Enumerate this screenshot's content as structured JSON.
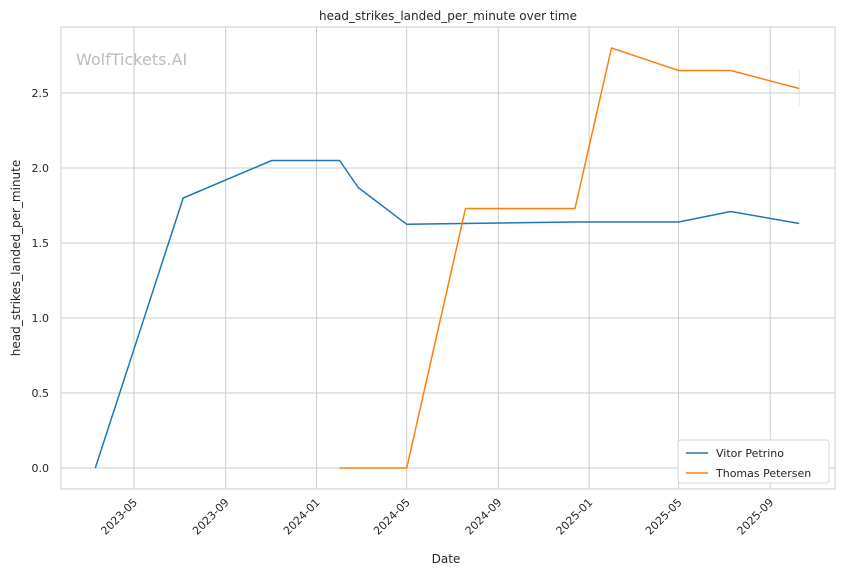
{
  "chart_data": {
    "type": "line",
    "title": "head_strikes_landed_per_minute over time",
    "xlabel": "Date",
    "ylabel": "head_strikes_landed_per_minute",
    "watermark": "WolfTickets.AI",
    "xlim": [
      "2023-01-23",
      "2025-11-27"
    ],
    "ylim": [
      -0.14,
      2.94
    ],
    "x_ticks": [
      "2023-05",
      "2023-09",
      "2024-01",
      "2024-05",
      "2024-09",
      "2025-01",
      "2025-05",
      "2025-09"
    ],
    "y_ticks": [
      "0.0",
      "0.5",
      "1.0",
      "1.5",
      "2.0",
      "2.5"
    ],
    "grid": true,
    "legend_position": "bottom-right",
    "series": [
      {
        "name": "Vitor Petrino",
        "color": "#1f77b4",
        "x": [
          "2023-03-10",
          "2023-07-06",
          "2023-11-02",
          "2024-02-01",
          "2024-02-26",
          "2024-05-01",
          "2024-12-13",
          "2025-05-01",
          "2025-07-10",
          "2025-10-10"
        ],
        "y": [
          0.0,
          1.8,
          2.05,
          2.05,
          1.87,
          1.625,
          1.64,
          1.64,
          1.71,
          1.63
        ]
      },
      {
        "name": "Thomas Petersen",
        "color": "#ff7f0e",
        "x": [
          "2024-02-01",
          "2024-05-01",
          "2024-07-19",
          "2024-12-13",
          "2025-01-31",
          "2025-05-01",
          "2025-07-10",
          "2025-10-10"
        ],
        "y": [
          0.0,
          0.0,
          1.73,
          1.73,
          2.8,
          2.65,
          2.65,
          2.53
        ],
        "last_point_range": [
          2.41,
          2.65
        ]
      }
    ]
  }
}
